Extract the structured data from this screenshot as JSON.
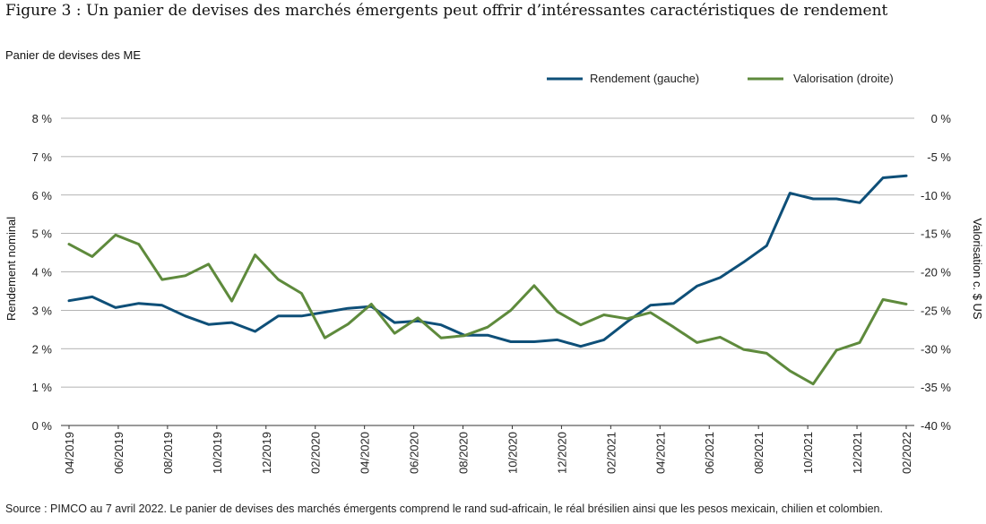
{
  "figure_title": "Figure 3 : Un panier de devises des marchés émergents peut offrir d’intéressantes caractéristiques de rendement",
  "panel_label": "Panier de devises des ME",
  "source_note": "Source : PIMCO au 7 avril 2022. Le panier de devises des marchés émergents comprend le rand sud-africain, le réal brésilien ainsi que les pesos mexicain, chilien et colombien.",
  "colors": {
    "yield_series": "#0e4f78",
    "valuation_series": "#5e8a3c",
    "gridline": "#9a9a9a",
    "axis": "#333333"
  },
  "chart_data": {
    "type": "line",
    "title": "Panier de devises des ME",
    "ylabel": "Rendement nominal",
    "y2label": "Valorisation c. $ US",
    "ylim": [
      0,
      8
    ],
    "y2lim": [
      -40,
      0
    ],
    "y_ticks": [
      "0 %",
      "1 %",
      "2 %",
      "3 %",
      "4 %",
      "5 %",
      "6 %",
      "7 %",
      "8 %"
    ],
    "y2_ticks": [
      "-40 %",
      "-35 %",
      "-30 %",
      "-25 %",
      "-20 %",
      "-15 %",
      "-10 %",
      "-5 %",
      "0 %"
    ],
    "x_tick_labels": [
      "04/2019",
      "06/2019",
      "08/2019",
      "10/2019",
      "12/2019",
      "02/2020",
      "04/2020",
      "06/2020",
      "08/2020",
      "10/2020",
      "12/2020",
      "02/2021",
      "04/2021",
      "06/2021",
      "08/2021",
      "10/2021",
      "12/2021",
      "02/2022"
    ],
    "grid": true,
    "legend_position": "top-right",
    "series": [
      {
        "name": "Rendement (gauche)",
        "axis": "left",
        "values": [
          3.25,
          3.35,
          3.07,
          3.18,
          3.13,
          2.85,
          2.63,
          2.68,
          2.45,
          2.85,
          2.85,
          2.95,
          3.05,
          3.1,
          2.68,
          2.72,
          2.62,
          2.35,
          2.35,
          2.18,
          2.18,
          2.23,
          2.06,
          2.23,
          2.7,
          3.13,
          3.18,
          3.63,
          3.85,
          4.25,
          4.68,
          6.05,
          5.9,
          5.9,
          5.8,
          6.45,
          6.5
        ]
      },
      {
        "name": "Valorisation (droite)",
        "axis": "right",
        "values": [
          -16.4,
          -18,
          -15.2,
          -16.4,
          -21,
          -20.5,
          -19,
          -23.8,
          -17.8,
          -21,
          -22.8,
          -28.6,
          -26.8,
          -24.2,
          -28,
          -26,
          -28.6,
          -28.3,
          -27.2,
          -25,
          -21.8,
          -25.2,
          -26.9,
          -25.6,
          -26.1,
          -25.3,
          -27.2,
          -29.2,
          -28.5,
          -30.1,
          -30.6,
          -32.9,
          -34.6,
          -30.2,
          -29.2,
          -23.6,
          -24.2
        ]
      }
    ]
  }
}
